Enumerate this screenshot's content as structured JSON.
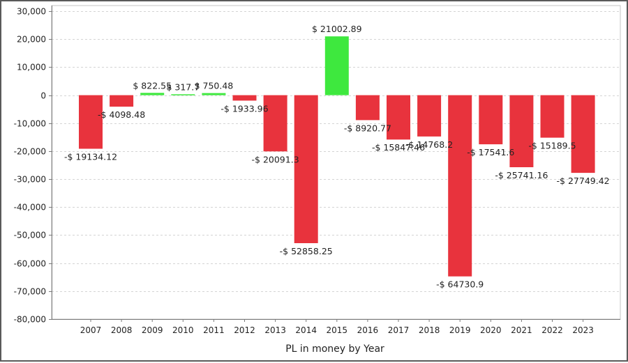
{
  "chart_data": {
    "type": "bar",
    "title": "",
    "xlabel": "PL in money by Year",
    "ylabel": "",
    "ylim": [
      -80000,
      32000
    ],
    "yticks": [
      30000,
      20000,
      10000,
      0,
      -10000,
      -20000,
      -30000,
      -40000,
      -50000,
      -60000,
      -70000,
      -80000
    ],
    "ytick_labels": [
      "30,000",
      "20,000",
      "10,000",
      "0",
      "-10,000",
      "-20,000",
      "-30,000",
      "-40,000",
      "-50,000",
      "-60,000",
      "-70,000",
      "-80,000"
    ],
    "grid": true,
    "legend": "none",
    "colors": {
      "positive": "#3ee83e",
      "negative": "#e8333d",
      "grid": "#d4d4d4",
      "axis": "#7a7a7a"
    },
    "categories": [
      "2007",
      "2008",
      "2009",
      "2010",
      "2011",
      "2012",
      "2013",
      "2014",
      "2015",
      "2016",
      "2017",
      "2018",
      "2019",
      "2020",
      "2021",
      "2022",
      "2023"
    ],
    "values": [
      -19134.12,
      -4098.48,
      822.55,
      317.7,
      750.48,
      -1933.96,
      -20091.3,
      -52858.25,
      21002.89,
      -8920.77,
      -15847.46,
      -14768.2,
      -64730.9,
      -17541.6,
      -25741.16,
      -15189.5,
      -27749.42
    ],
    "data_labels": [
      "-$ 19134.12",
      "-$ 4098.48",
      "$ 822.55",
      "$ 317.7",
      "$ 750.48",
      "-$ 1933.96",
      "-$ 20091.3",
      "-$ 52858.25",
      "$ 21002.89",
      "-$ 8920.77",
      "-$ 15847.46",
      "-$ 14768.2",
      "-$ 64730.9",
      "-$ 17541.6",
      "-$ 25741.16",
      "-$ 15189.5",
      "-$ 27749.42"
    ]
  }
}
